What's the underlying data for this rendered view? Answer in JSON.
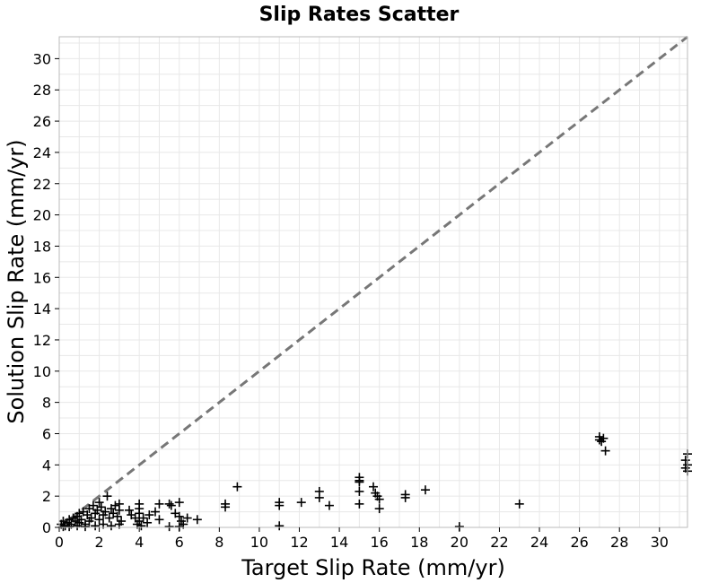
{
  "chart_data": {
    "type": "scatter",
    "title": "Slip Rates Scatter",
    "xlabel": "Target Slip Rate (mm/yr)",
    "ylabel": "Solution Slip Rate (mm/yr)",
    "xlim": [
      0,
      31.4
    ],
    "ylim": [
      0,
      31.4
    ],
    "xticks": [
      "0",
      "2",
      "4",
      "6",
      "8",
      "10",
      "12",
      "14",
      "16",
      "18",
      "20",
      "22",
      "24",
      "26",
      "28",
      "30"
    ],
    "yticks": [
      "0",
      "2",
      "4",
      "6",
      "8",
      "10",
      "12",
      "14",
      "16",
      "18",
      "20",
      "22",
      "24",
      "26",
      "28",
      "30"
    ],
    "grid": true,
    "marker": "plus",
    "reference_line": {
      "style": "dashed",
      "color": "#777777",
      "slope": 1
    },
    "colors": {
      "points": "#000000",
      "grid": "#e8e8e8",
      "frame": "#bbbbbb"
    },
    "points": [
      [
        0.1,
        0.2
      ],
      [
        0.2,
        0.4
      ],
      [
        0.3,
        0.1
      ],
      [
        0.4,
        0.3
      ],
      [
        0.5,
        0.5
      ],
      [
        0.6,
        0.2
      ],
      [
        0.7,
        0.6
      ],
      [
        0.8,
        0.4
      ],
      [
        0.9,
        0.7
      ],
      [
        1.0,
        0.3
      ],
      [
        1.0,
        0.9
      ],
      [
        1.1,
        0.5
      ],
      [
        1.2,
        1.0
      ],
      [
        1.3,
        0.2
      ],
      [
        1.4,
        0.8
      ],
      [
        1.5,
        1.2
      ],
      [
        1.5,
        0.4
      ],
      [
        1.6,
        0.6
      ],
      [
        1.7,
        1.4
      ],
      [
        1.8,
        0.9
      ],
      [
        1.9,
        1.1
      ],
      [
        2.0,
        1.6
      ],
      [
        2.0,
        0.5
      ],
      [
        2.1,
        1.3
      ],
      [
        2.2,
        0.8
      ],
      [
        2.3,
        1.0
      ],
      [
        2.4,
        2.0
      ],
      [
        2.5,
        0.6
      ],
      [
        2.6,
        1.2
      ],
      [
        2.7,
        0.9
      ],
      [
        2.8,
        1.4
      ],
      [
        2.9,
        0.7
      ],
      [
        3.0,
        1.5
      ],
      [
        3.0,
        1.1
      ],
      [
        3.1,
        0.4
      ],
      [
        0.2,
        0.05
      ],
      [
        0.5,
        0.05
      ],
      [
        0.9,
        0.1
      ],
      [
        1.3,
        0.05
      ],
      [
        1.8,
        0.1
      ],
      [
        2.2,
        0.2
      ],
      [
        2.6,
        0.1
      ],
      [
        3.0,
        0.2
      ],
      [
        3.5,
        1.1
      ],
      [
        3.6,
        0.8
      ],
      [
        3.8,
        0.6
      ],
      [
        3.9,
        0.2
      ],
      [
        4.0,
        1.5
      ],
      [
        4.0,
        1.2
      ],
      [
        4.0,
        0.9
      ],
      [
        4.0,
        0.4
      ],
      [
        4.1,
        0.1
      ],
      [
        4.2,
        0.6
      ],
      [
        4.4,
        0.3
      ],
      [
        4.5,
        0.8
      ],
      [
        4.8,
        1.0
      ],
      [
        5.0,
        1.5
      ],
      [
        5.0,
        0.5
      ],
      [
        5.5,
        1.5
      ],
      [
        5.6,
        1.4
      ],
      [
        5.8,
        0.9
      ],
      [
        6.0,
        1.6
      ],
      [
        6.0,
        0.7
      ],
      [
        6.1,
        0.4
      ],
      [
        6.2,
        0.2
      ],
      [
        6.4,
        0.6
      ],
      [
        6.9,
        0.5
      ],
      [
        5.5,
        0.05
      ],
      [
        6.0,
        0.05
      ],
      [
        8.3,
        1.5
      ],
      [
        8.3,
        1.3
      ],
      [
        8.9,
        2.6
      ],
      [
        11.0,
        1.6
      ],
      [
        11.0,
        1.4
      ],
      [
        11.0,
        0.1
      ],
      [
        12.1,
        1.6
      ],
      [
        13.0,
        2.3
      ],
      [
        13.0,
        1.9
      ],
      [
        13.5,
        1.4
      ],
      [
        15.0,
        3.2
      ],
      [
        15.0,
        3.0
      ],
      [
        15.0,
        2.9
      ],
      [
        15.0,
        2.3
      ],
      [
        15.0,
        1.5
      ],
      [
        15.7,
        2.6
      ],
      [
        15.8,
        2.2
      ],
      [
        15.9,
        2.0
      ],
      [
        16.0,
        1.8
      ],
      [
        16.0,
        1.2
      ],
      [
        17.3,
        2.1
      ],
      [
        17.3,
        1.9
      ],
      [
        18.3,
        2.4
      ],
      [
        20.0,
        0.05
      ],
      [
        23.0,
        1.5
      ],
      [
        27.0,
        5.8
      ],
      [
        27.0,
        5.6
      ],
      [
        27.1,
        5.5
      ],
      [
        27.2,
        5.7
      ],
      [
        27.3,
        4.9
      ],
      [
        31.4,
        4.7
      ],
      [
        31.3,
        4.3
      ],
      [
        31.4,
        4.0
      ],
      [
        31.3,
        3.8
      ],
      [
        31.4,
        3.6
      ]
    ]
  }
}
